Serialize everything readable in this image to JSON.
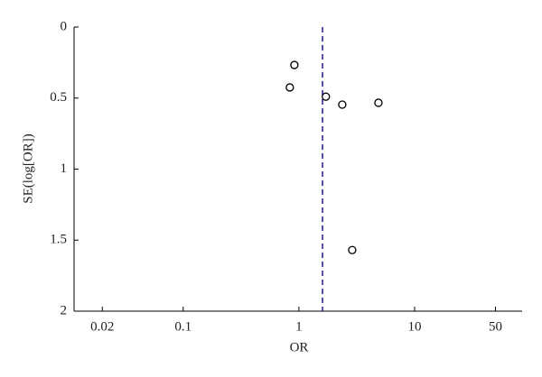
{
  "chart_data": {
    "type": "scatter",
    "xlabel": "OR",
    "ylabel": "SE(log[OR])",
    "x": [
      0.914,
      0.835,
      1.71,
      2.37,
      4.87,
      2.89
    ],
    "values": [
      0.267,
      0.425,
      0.49,
      0.546,
      0.533,
      1.57
    ],
    "color": "#000000",
    "xscale": "log",
    "xlim": [
      0.0114,
      85
    ],
    "xticks": [
      0.02,
      0.1,
      1,
      10,
      50
    ],
    "ylim": [
      0,
      2
    ],
    "yinverted": true,
    "yticks": [
      0,
      0.5,
      1,
      1.5,
      2
    ],
    "reference_line": 1.6,
    "reference_color": "#1a1a8c",
    "grid": false
  }
}
